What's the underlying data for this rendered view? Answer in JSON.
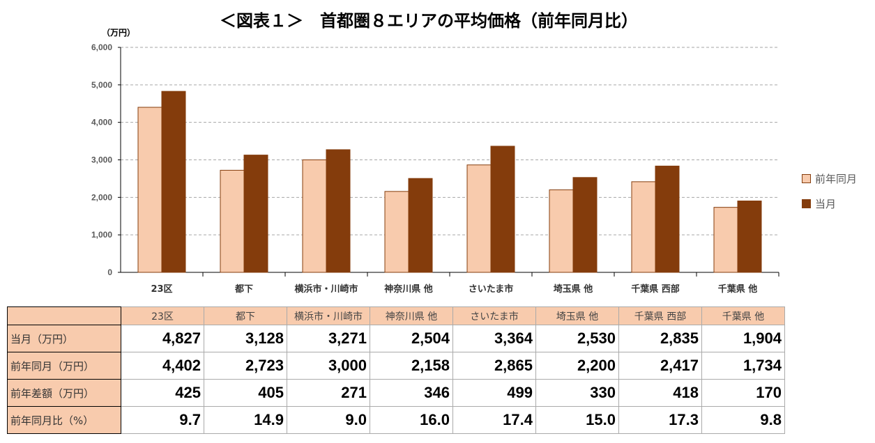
{
  "title": "＜図表１＞　首都圏８エリアの平均価格（前年同月比）",
  "chart_data": {
    "type": "bar",
    "title": "＜図表１＞　首都圏８エリアの平均価格（前年同月比）",
    "ylabel": "（万円）",
    "ylim": [
      0,
      6000
    ],
    "yticks": [
      "0",
      "1,000",
      "2,000",
      "3,000",
      "4,000",
      "5,000",
      "6,000"
    ],
    "grid": true,
    "legend_position": "right",
    "categories": [
      "23区",
      "都下",
      "横浜市・川崎市",
      "神奈川県 他",
      "さいたま市",
      "埼玉県 他",
      "千葉県 西部",
      "千葉県 他"
    ],
    "series": [
      {
        "name": "前年同月",
        "color": "#f8cbad",
        "values": [
          4402,
          2723,
          3000,
          2158,
          2865,
          2200,
          2417,
          1734
        ]
      },
      {
        "name": "当月",
        "color": "#843c0c",
        "values": [
          4827,
          3128,
          3271,
          2504,
          3364,
          2530,
          2835,
          1904
        ]
      }
    ]
  },
  "table": {
    "header": [
      "23区",
      "都下",
      "横浜市・川崎市",
      "神奈川県 他",
      "さいたま市",
      "埼玉県 他",
      "千葉県 西部",
      "千葉県 他"
    ],
    "rows": [
      {
        "label": "当月（万円）",
        "values": [
          "4,827",
          "3,128",
          "3,271",
          "2,504",
          "3,364",
          "2,530",
          "2,835",
          "1,904"
        ]
      },
      {
        "label": "前年同月（万円）",
        "values": [
          "4,402",
          "2,723",
          "3,000",
          "2,158",
          "2,865",
          "2,200",
          "2,417",
          "1,734"
        ]
      },
      {
        "label": "前年差額（万円）",
        "values": [
          "425",
          "405",
          "271",
          "346",
          "499",
          "330",
          "418",
          "170"
        ]
      },
      {
        "label": "前年同月比（%）",
        "values": [
          "9.7",
          "14.9",
          "9.0",
          "16.0",
          "17.4",
          "15.0",
          "17.3",
          "9.8"
        ]
      }
    ]
  }
}
